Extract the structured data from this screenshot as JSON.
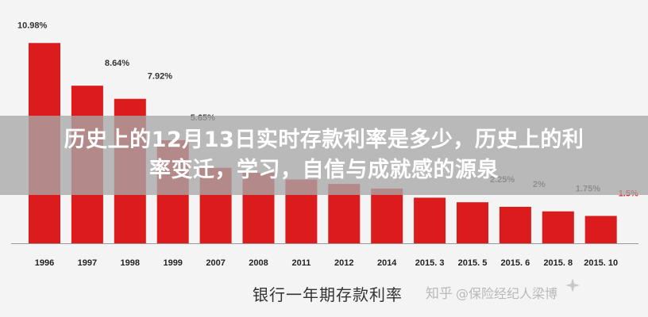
{
  "banner": {
    "line1": "历史上的12月13日实时存款利率是多少，历史上的利",
    "line2": "率变迁，学习，自信与成就感的源泉"
  },
  "chart_data": {
    "type": "bar",
    "title": "",
    "xlabel": "银行一年期存款利率",
    "ylabel": "",
    "categories": [
      "1996",
      "1997",
      "1998",
      "1999",
      "2007",
      "2008",
      "2011",
      "2012",
      "2014",
      "2015. 3",
      "2015. 5",
      "2015. 6",
      "2015. 8",
      "2015. 10"
    ],
    "values": [
      10.98,
      8.64,
      7.92,
      5.65,
      4.14,
      3.87,
      3.5,
      3.25,
      3.0,
      2.5,
      2.25,
      2.0,
      1.75,
      1.5
    ],
    "data_labels": [
      "10.98%",
      "8.64%",
      "7.92%",
      "5.65%",
      "",
      "",
      "",
      "",
      "",
      "",
      "2.25%",
      "2%",
      "1.75%",
      "1.5%"
    ],
    "ylim": [
      0,
      11.6
    ],
    "grid": false,
    "colors": {
      "bar": "#dc1c1c",
      "label": "#333333",
      "last_label": "#e02020",
      "axis": "#999999"
    }
  },
  "watermark": {
    "site": "知乎",
    "author": "@保险经纪人梁博"
  }
}
